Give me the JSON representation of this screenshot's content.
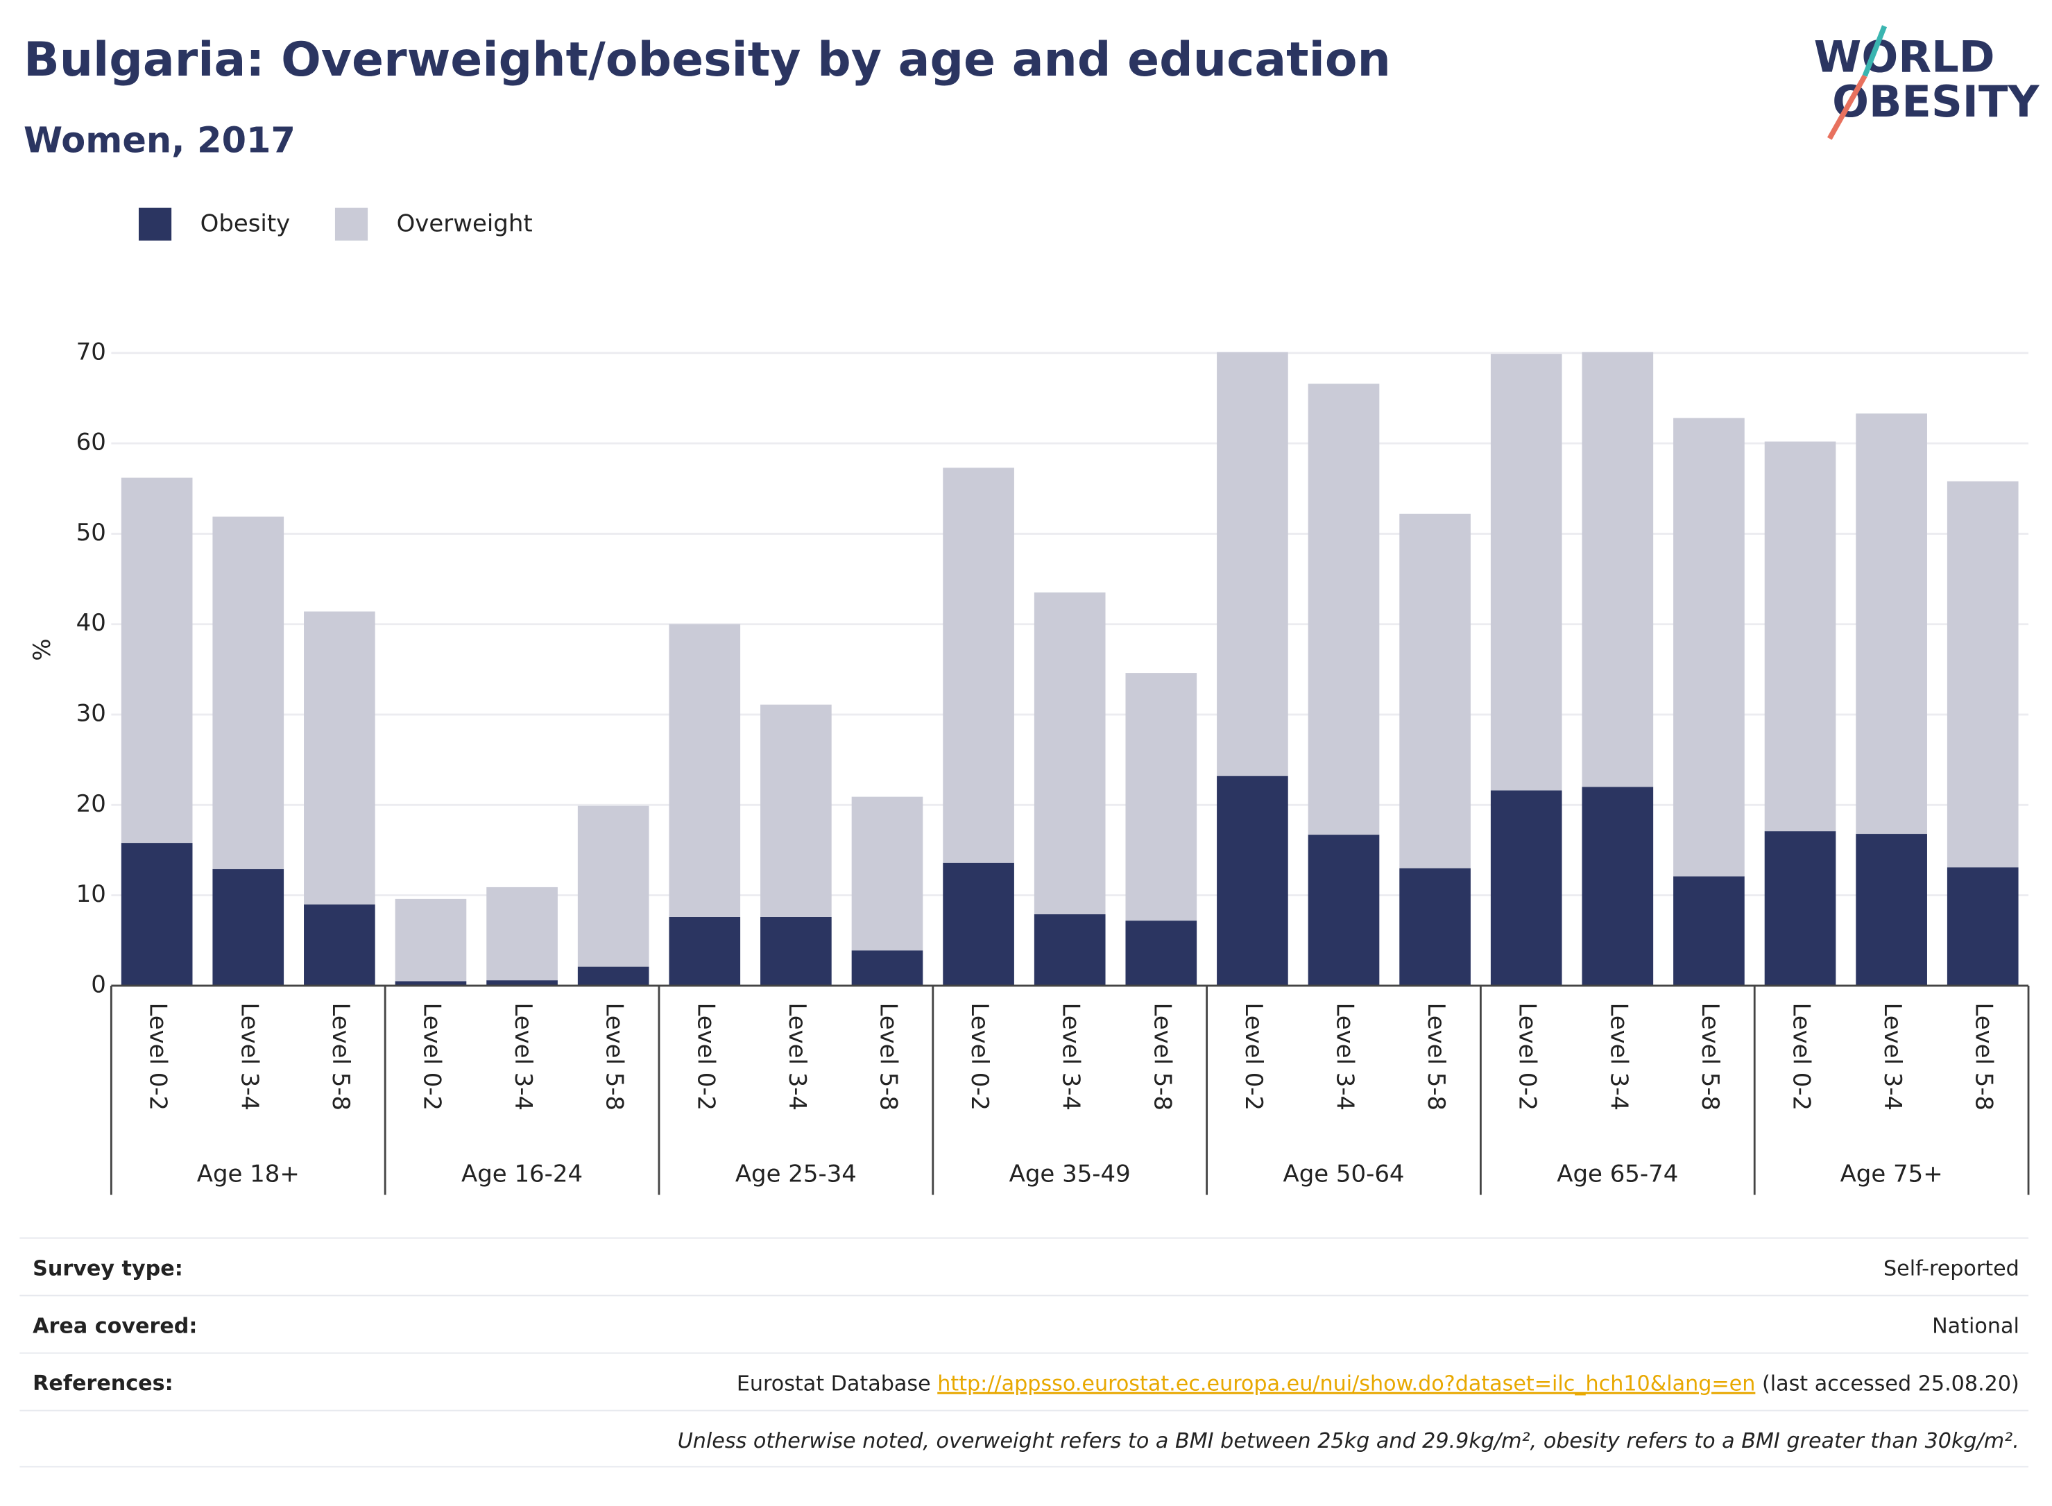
{
  "chart_data": {
    "type": "stacked_bar",
    "title": "Bulgaria: Overweight/obesity by age and education",
    "subtitle": "Women, 2017",
    "y_label": "%",
    "groups": [
      {
        "name": "Age 18+",
        "categories": [
          "Level 0-2",
          "Level 3-4",
          "Level 5-8"
        ]
      },
      {
        "name": "Age 16-24",
        "categories": [
          "Level 0-2",
          "Level 3-4",
          "Level 5-8"
        ]
      },
      {
        "name": "Age 25-34",
        "categories": [
          "Level 0-2",
          "Level 3-4",
          "Level 5-8"
        ]
      },
      {
        "name": "Age 35-49",
        "categories": [
          "Level 0-2",
          "Level 3-4",
          "Level 5-8"
        ]
      },
      {
        "name": "Age 50-64",
        "categories": [
          "Level 0-2",
          "Level 3-4",
          "Level 5-8"
        ]
      },
      {
        "name": "Age 65-74",
        "categories": [
          "Level 0-2",
          "Level 3-4",
          "Level 5-8"
        ]
      },
      {
        "name": "Age 75+",
        "categories": [
          "Level 0-2",
          "Level 3-4",
          "Level 5-8"
        ]
      }
    ],
    "series": [
      {
        "name": "Obesity",
        "color": "#2b3561",
        "values": [
          15.8,
          12.9,
          9.0,
          0.5,
          0.6,
          2.1,
          7.6,
          7.6,
          3.9,
          13.6,
          7.9,
          7.2,
          23.2,
          16.7,
          13.0,
          21.6,
          22.0,
          12.1,
          17.1,
          16.8,
          13.1
        ]
      },
      {
        "name": "Overweight",
        "color": "#cacbd7",
        "values": [
          40.4,
          39.0,
          32.4,
          9.1,
          10.3,
          17.8,
          32.4,
          23.5,
          17.0,
          43.7,
          35.6,
          27.4,
          46.9,
          49.9,
          39.2,
          48.3,
          48.1,
          50.7,
          43.1,
          46.5,
          42.7
        ]
      }
    ],
    "ylim": [
      0,
      70
    ],
    "yticks": [
      0,
      10,
      20,
      30,
      40,
      50,
      60,
      70
    ],
    "grid": true,
    "legend": "top-left"
  },
  "logo": {
    "line1": "WORLD",
    "line2": "OBESITY"
  },
  "footer": {
    "survey_type": {
      "label": "Survey type:",
      "value": "Self-reported"
    },
    "area_covered": {
      "label": "Area covered:",
      "value": "National"
    },
    "references": {
      "label": "References:",
      "prefix": "Eurostat Database ",
      "link": "http://appsso.eurostat.ec.europa.eu/nui/show.do?dataset=ilc_hch10&lang=en",
      "suffix": " (last accessed 25.08.20)"
    },
    "note": "Unless otherwise noted, overweight refers to a BMI between 25kg and 29.9kg/m², obesity refers to a BMI greater than 30kg/m²."
  }
}
